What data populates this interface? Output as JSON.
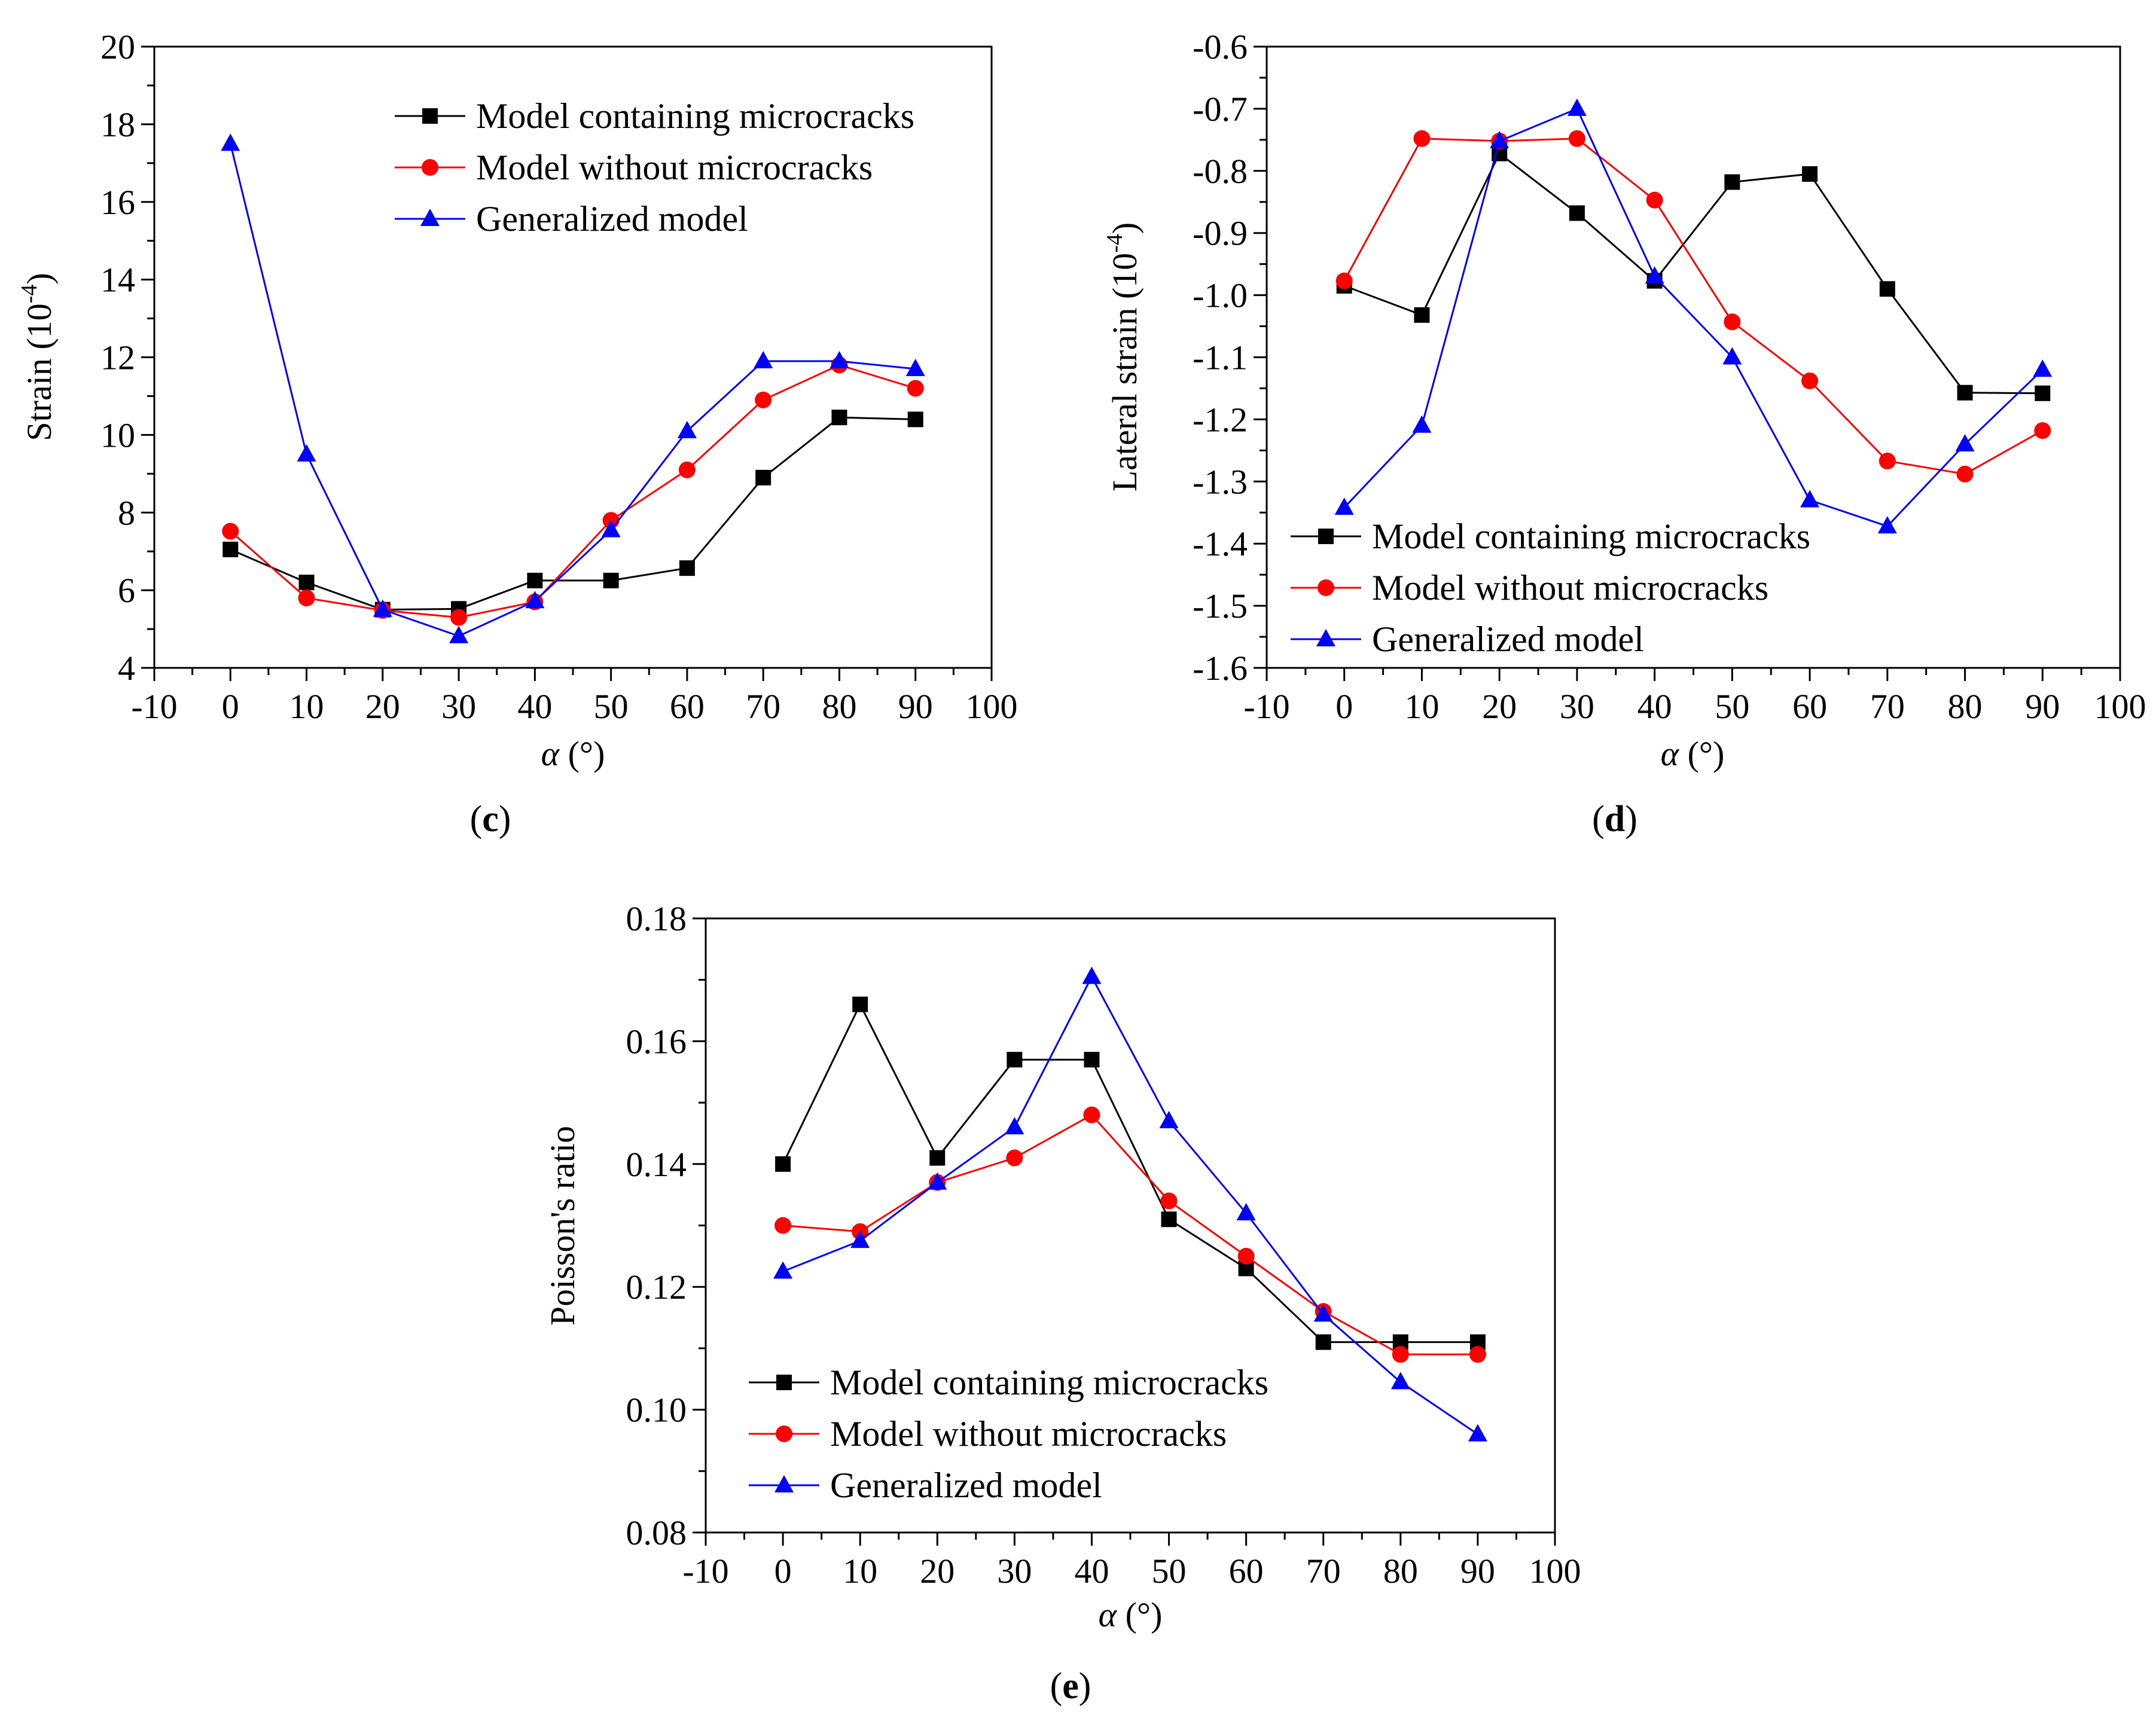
{
  "figure": {
    "panels": [
      "c",
      "d",
      "e"
    ]
  },
  "chart_data": [
    {
      "type": "line",
      "panel_label": "c",
      "xlabel": "α (°)",
      "ylabel": "Strain (10",
      "ylabel_exponent": "-4",
      "ylabel_suffix": ")",
      "xlim": [
        -10,
        100
      ],
      "ylim": [
        4,
        20
      ],
      "xticks": [
        -10,
        0,
        10,
        20,
        30,
        40,
        50,
        60,
        70,
        80,
        90,
        100
      ],
      "yticks": [
        4,
        6,
        8,
        10,
        12,
        14,
        16,
        18,
        20
      ],
      "ytick_decimals": 0,
      "legend_position": "top-center",
      "x": [
        0,
        10,
        20,
        30,
        40,
        50,
        60,
        70,
        80,
        90
      ],
      "series": [
        {
          "name": "Model containing microcracks",
          "color": "#000000",
          "marker": "square",
          "values": [
            7.05,
            6.2,
            5.5,
            5.52,
            6.25,
            6.25,
            6.57,
            8.9,
            10.45,
            10.4
          ]
        },
        {
          "name": "Model without microcracks",
          "color": "#ff0000",
          "marker": "circle",
          "values": [
            7.52,
            5.8,
            5.48,
            5.3,
            5.7,
            7.8,
            9.1,
            10.9,
            11.8,
            11.2
          ]
        },
        {
          "name": "Generalized model",
          "color": "#0000ff",
          "marker": "triangle",
          "values": [
            17.5,
            9.5,
            5.5,
            4.82,
            5.72,
            7.55,
            10.1,
            11.9,
            11.9,
            11.7
          ]
        }
      ]
    },
    {
      "type": "line",
      "panel_label": "d",
      "xlabel": "α (°)",
      "ylabel": "Lateral strain (10",
      "ylabel_exponent": "-4",
      "ylabel_suffix": ")",
      "xlim": [
        -10,
        100
      ],
      "ylim": [
        -1.6,
        -0.6
      ],
      "xticks": [
        -10,
        0,
        10,
        20,
        30,
        40,
        50,
        60,
        70,
        80,
        90,
        100
      ],
      "yticks": [
        -1.6,
        -1.5,
        -1.4,
        -1.3,
        -1.2,
        -1.1,
        -1.0,
        -0.9,
        -0.8,
        -0.7,
        -0.6
      ],
      "ytick_decimals": 1,
      "legend_position": "bottom-left",
      "x": [
        0,
        10,
        20,
        30,
        40,
        50,
        60,
        70,
        80,
        90
      ],
      "series": [
        {
          "name": "Model containing microcracks",
          "color": "#000000",
          "marker": "square",
          "values": [
            -0.985,
            -1.032,
            -0.772,
            -0.868,
            -0.977,
            -0.818,
            -0.805,
            -0.99,
            -1.157,
            -1.158
          ]
        },
        {
          "name": "Model without microcracks",
          "color": "#ff0000",
          "marker": "circle",
          "values": [
            -0.977,
            -0.748,
            -0.752,
            -0.748,
            -0.847,
            -1.043,
            -1.138,
            -1.267,
            -1.288,
            -1.218
          ]
        },
        {
          "name": "Generalized model",
          "color": "#0000ff",
          "marker": "triangle",
          "values": [
            -1.342,
            -1.21,
            -0.752,
            -0.7,
            -0.97,
            -1.1,
            -1.33,
            -1.372,
            -1.24,
            -1.12
          ]
        }
      ]
    },
    {
      "type": "line",
      "panel_label": "e",
      "xlabel": "α (°)",
      "ylabel": "Poisson's ratio",
      "ylabel_exponent": "",
      "ylabel_suffix": "",
      "xlim": [
        -10,
        100
      ],
      "ylim": [
        0.08,
        0.18
      ],
      "xticks": [
        -10,
        0,
        10,
        20,
        30,
        40,
        50,
        60,
        70,
        80,
        90,
        100
      ],
      "yticks": [
        0.08,
        0.1,
        0.12,
        0.14,
        0.16,
        0.18
      ],
      "ytick_decimals": 2,
      "legend_position": "bottom-left",
      "x": [
        0,
        10,
        20,
        30,
        40,
        50,
        60,
        70,
        80,
        90
      ],
      "series": [
        {
          "name": "Model containing microcracks",
          "color": "#000000",
          "marker": "square",
          "values": [
            0.14,
            0.166,
            0.141,
            0.157,
            0.157,
            0.131,
            0.123,
            0.111,
            0.111,
            0.111
          ]
        },
        {
          "name": "Model without microcracks",
          "color": "#ff0000",
          "marker": "circle",
          "values": [
            0.13,
            0.129,
            0.137,
            0.141,
            0.148,
            0.134,
            0.125,
            0.116,
            0.109,
            0.109
          ]
        },
        {
          "name": "Generalized model",
          "color": "#0000ff",
          "marker": "triangle",
          "values": [
            0.1225,
            0.1275,
            0.137,
            0.146,
            0.1705,
            0.147,
            0.132,
            0.1155,
            0.1045,
            0.096
          ]
        }
      ]
    }
  ]
}
